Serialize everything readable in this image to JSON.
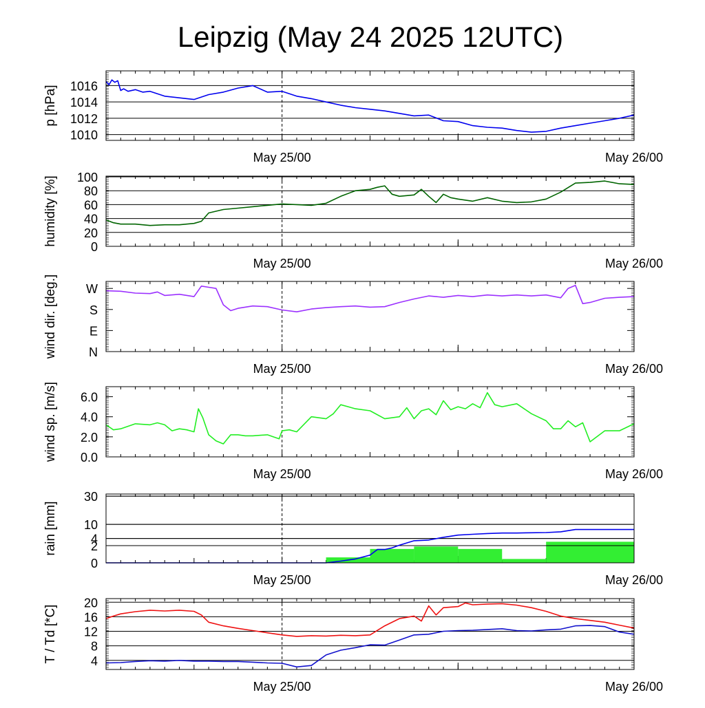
{
  "title": "Leipzig (May 24 2025 12UTC)",
  "colors": {
    "pressure": "#0000ee",
    "humidity": "#006400",
    "wind_dir": "#9b30ff",
    "wind_speed": "#22ee22",
    "rain_total": "#0000ee",
    "rain_bars": "#33ee33",
    "temperature": "#ee1111",
    "dewpoint": "#1111cc",
    "grid": "#000000"
  },
  "chart_data": [
    {
      "type": "line",
      "ylabel": "p [hPa]",
      "xlim": [
        0,
        36
      ],
      "ylim": [
        1009.3,
        1017.8
      ],
      "yticks": [
        1010,
        1012,
        1014,
        1016
      ],
      "ytick_labels": [
        "1010",
        "1012",
        "1014",
        "1016"
      ],
      "xtick_labels": [
        "May 25/00",
        "May 26/00"
      ],
      "xtick_hours": [
        12,
        36
      ],
      "grid": true,
      "series": [
        {
          "color_key": "pressure",
          "x": [
            0,
            0.2,
            0.4,
            0.6,
            0.8,
            1.0,
            1.2,
            1.5,
            2.0,
            2.5,
            3.0,
            4.0,
            5.0,
            6.0,
            7.0,
            8.0,
            9.0,
            10.0,
            11.0,
            12.0,
            13.0,
            14.0,
            15.0,
            16.0,
            17.0,
            18.0,
            19.0,
            20.0,
            21.0,
            22.0,
            23.0,
            24.0,
            25.0,
            26.0,
            27.0,
            28.0,
            29.0,
            30.0,
            31.0,
            32.0,
            33.0,
            34.0,
            35.0,
            36.0
          ],
          "y": [
            1016.5,
            1016.1,
            1016.7,
            1016.4,
            1016.6,
            1015.4,
            1015.6,
            1015.3,
            1015.5,
            1015.2,
            1015.3,
            1014.7,
            1014.5,
            1014.3,
            1014.9,
            1015.2,
            1015.7,
            1016.0,
            1015.2,
            1015.3,
            1014.7,
            1014.4,
            1014.0,
            1013.6,
            1013.3,
            1013.1,
            1012.9,
            1012.6,
            1012.3,
            1012.4,
            1011.7,
            1011.6,
            1011.1,
            1010.9,
            1010.8,
            1010.5,
            1010.3,
            1010.4,
            1010.8,
            1011.1,
            1011.4,
            1011.7,
            1012.0,
            1012.4
          ]
        }
      ]
    },
    {
      "type": "line",
      "ylabel": "humidity [%]",
      "xlim": [
        0,
        36
      ],
      "ylim": [
        0,
        101
      ],
      "yticks": [
        0,
        20,
        40,
        60,
        80,
        100
      ],
      "ytick_labels": [
        "0",
        "20",
        "40",
        "60",
        "80",
        "100"
      ],
      "xtick_labels": [
        "May 25/00",
        "May 26/00"
      ],
      "xtick_hours": [
        12,
        36
      ],
      "grid": true,
      "series": [
        {
          "color_key": "humidity",
          "x": [
            0,
            0.5,
            1.0,
            2.0,
            3.0,
            4.0,
            5.0,
            6.0,
            6.5,
            7.0,
            8.0,
            9.0,
            10.0,
            11.0,
            12.0,
            13.0,
            14.0,
            15.0,
            16.0,
            17.0,
            18.0,
            18.5,
            19.0,
            19.5,
            20.0,
            21.0,
            21.5,
            22.0,
            22.5,
            23.0,
            23.5,
            24.0,
            25.0,
            26.0,
            27.0,
            28.0,
            29.0,
            30.0,
            31.0,
            32.0,
            33.0,
            34.0,
            35.0,
            36.0
          ],
          "y": [
            38,
            34,
            32,
            32,
            30,
            31,
            31,
            33,
            36,
            48,
            53,
            55,
            57,
            59,
            61,
            60,
            59,
            62,
            72,
            80,
            82,
            85,
            87,
            75,
            72,
            74,
            82,
            72,
            63,
            75,
            70,
            68,
            65,
            70,
            65,
            63,
            64,
            68,
            78,
            91,
            92,
            94,
            90,
            89
          ]
        }
      ]
    },
    {
      "type": "line",
      "ylabel": "wind dir. [deg.]",
      "xlim": [
        0,
        36
      ],
      "ylim": [
        0,
        300
      ],
      "yticks": [
        0,
        90,
        180,
        270
      ],
      "ytick_labels": [
        "N",
        "E",
        "S",
        "W"
      ],
      "xtick_labels": [
        "May 25/00",
        "May 26/00"
      ],
      "xtick_hours": [
        12,
        36
      ],
      "grid": false,
      "series": [
        {
          "color_key": "wind_dir",
          "x": [
            0,
            1.0,
            2.0,
            3.0,
            3.5,
            4.0,
            5.0,
            6.0,
            6.5,
            7.0,
            7.5,
            8.0,
            8.5,
            9.0,
            10.0,
            11.0,
            12.0,
            13.0,
            14.0,
            15.0,
            16.0,
            17.0,
            18.0,
            19.0,
            20.0,
            21.0,
            22.0,
            23.0,
            24.0,
            25.0,
            26.0,
            27.0,
            28.0,
            29.0,
            30.0,
            31.0,
            31.5,
            32.0,
            32.5,
            33.0,
            34.0,
            35.0,
            36.0
          ],
          "y": [
            260,
            258,
            250,
            248,
            255,
            240,
            245,
            235,
            280,
            275,
            270,
            200,
            175,
            185,
            195,
            192,
            178,
            170,
            182,
            188,
            192,
            195,
            190,
            192,
            210,
            225,
            238,
            232,
            240,
            235,
            242,
            238,
            242,
            238,
            242,
            230,
            270,
            283,
            205,
            210,
            228,
            232,
            235
          ]
        }
      ]
    },
    {
      "type": "line",
      "ylabel": "wind sp. [m/s]",
      "xlim": [
        0,
        36
      ],
      "ylim": [
        0,
        7.0
      ],
      "yticks": [
        0,
        2,
        4,
        6
      ],
      "ytick_labels": [
        "0.0",
        "2.0",
        "4.0",
        "6.0"
      ],
      "xtick_labels": [
        "May 25/00",
        "May 26/00"
      ],
      "xtick_hours": [
        12,
        36
      ],
      "grid": false,
      "series": [
        {
          "color_key": "wind_speed",
          "x": [
            0,
            0.5,
            1.0,
            2.0,
            3.0,
            3.5,
            4.0,
            4.5,
            5.0,
            5.5,
            6.0,
            6.3,
            6.6,
            7.0,
            7.5,
            8.0,
            8.5,
            9.0,
            9.5,
            10.0,
            11.0,
            11.8,
            12.0,
            12.5,
            13.0,
            14.0,
            15.0,
            15.5,
            16.0,
            17.0,
            18.0,
            19.0,
            20.0,
            20.5,
            21.0,
            21.5,
            22.0,
            22.5,
            23.0,
            23.5,
            24.0,
            24.5,
            25.0,
            25.5,
            26.0,
            26.5,
            27.0,
            28.0,
            29.0,
            30.0,
            30.5,
            31.0,
            31.5,
            32.0,
            32.5,
            33.0,
            34.0,
            35.0,
            36.0
          ],
          "y": [
            3.2,
            2.7,
            2.8,
            3.3,
            3.2,
            3.4,
            3.2,
            2.6,
            2.8,
            2.7,
            2.5,
            4.8,
            3.9,
            2.2,
            1.6,
            1.3,
            2.2,
            2.2,
            2.1,
            2.1,
            2.2,
            1.8,
            2.6,
            2.7,
            2.5,
            4.0,
            3.8,
            4.3,
            5.2,
            4.8,
            4.6,
            3.8,
            4.0,
            4.9,
            3.8,
            4.6,
            4.8,
            4.2,
            5.6,
            4.7,
            5.0,
            4.8,
            5.3,
            4.9,
            6.4,
            5.2,
            5.0,
            5.3,
            4.3,
            3.6,
            2.8,
            2.8,
            3.6,
            3.0,
            3.4,
            1.5,
            2.6,
            2.6,
            3.3
          ]
        }
      ]
    },
    {
      "type": "bar",
      "ylabel": "rain [mm]",
      "xlim": [
        0,
        36
      ],
      "y_scale": "sqrt",
      "ylim": [
        0,
        32
      ],
      "yticks": [
        0,
        2,
        4,
        10,
        30
      ],
      "ytick_labels": [
        "0",
        "2",
        "4",
        "10",
        "30"
      ],
      "xtick_labels": [
        "May 25/00",
        "May 26/00"
      ],
      "xtick_hours": [
        12,
        36
      ],
      "grid": true,
      "bars": [
        {
          "x0": 0,
          "x1": 15,
          "value": 0
        },
        {
          "x0": 15,
          "x1": 18,
          "value": 0.2
        },
        {
          "x0": 18,
          "x1": 21,
          "value": 1.3
        },
        {
          "x0": 21,
          "x1": 24,
          "value": 1.8
        },
        {
          "x0": 24,
          "x1": 27,
          "value": 1.3
        },
        {
          "x0": 27,
          "x1": 30,
          "value": 0.1
        },
        {
          "x0": 30,
          "x1": 36,
          "value": 3.0
        }
      ],
      "series": [
        {
          "color_key": "rain_total",
          "x": [
            0,
            12,
            13,
            14,
            15,
            16,
            17,
            18,
            18.5,
            19,
            19.5,
            20,
            21,
            22,
            23,
            24,
            25,
            26,
            27,
            28,
            29,
            30,
            31,
            32,
            33,
            36
          ],
          "y": [
            0,
            0,
            0,
            0,
            0,
            0.02,
            0.1,
            0.4,
            1.2,
            1.2,
            1.5,
            2.1,
            3.3,
            3.5,
            4.4,
            5.2,
            5.5,
            5.8,
            6.0,
            6.0,
            6.1,
            6.2,
            6.5,
            7.5,
            7.5,
            7.5
          ]
        }
      ]
    },
    {
      "type": "line",
      "ylabel": "T / Td [*C]",
      "xlim": [
        0,
        36
      ],
      "ylim": [
        1.5,
        21
      ],
      "yticks": [
        4,
        8,
        12,
        16,
        20
      ],
      "ytick_labels": [
        "4",
        "8",
        "12",
        "16",
        "20"
      ],
      "xtick_labels": [
        "May 25/00",
        "May 26/00"
      ],
      "xtick_hours": [
        12,
        36
      ],
      "grid": true,
      "series": [
        {
          "color_key": "temperature",
          "x": [
            0,
            0.5,
            1.0,
            2.0,
            3.0,
            4.0,
            5.0,
            6.0,
            6.5,
            7.0,
            8.0,
            9.0,
            10.0,
            11.0,
            12.0,
            13.0,
            14.0,
            15.0,
            16.0,
            17.0,
            18.0,
            19.0,
            20.0,
            21.0,
            21.5,
            22.0,
            22.5,
            23.0,
            24.0,
            24.5,
            25.0,
            26.0,
            27.0,
            28.0,
            29.0,
            30.0,
            31.0,
            32.0,
            33.0,
            34.0,
            35.0,
            36.0
          ],
          "y": [
            15.5,
            16.2,
            16.8,
            17.4,
            17.8,
            17.6,
            17.8,
            17.5,
            16.5,
            14.5,
            13.5,
            12.8,
            12.2,
            11.6,
            11.0,
            10.6,
            10.8,
            10.7,
            10.9,
            10.8,
            11.0,
            13.5,
            15.5,
            16.2,
            14.8,
            19.0,
            16.5,
            18.5,
            18.8,
            19.8,
            19.3,
            19.5,
            19.6,
            19.2,
            18.5,
            17.5,
            16.2,
            15.5,
            15.0,
            14.5,
            13.7,
            12.9
          ]
        },
        {
          "color_key": "dewpoint",
          "x": [
            0,
            1.0,
            2.0,
            3.0,
            4.0,
            5.0,
            6.0,
            7.0,
            8.0,
            9.0,
            10.0,
            11.0,
            12.0,
            13.0,
            14.0,
            15.0,
            16.0,
            17.0,
            18.0,
            19.0,
            20.0,
            21.0,
            22.0,
            23.0,
            24.0,
            25.0,
            26.0,
            27.0,
            28.0,
            29.0,
            30.0,
            31.0,
            32.0,
            33.0,
            34.0,
            35.0,
            36.0
          ],
          "y": [
            3.3,
            3.4,
            3.7,
            3.9,
            3.8,
            4.0,
            3.8,
            3.8,
            3.7,
            3.7,
            3.5,
            3.3,
            3.2,
            2.2,
            2.6,
            5.5,
            6.8,
            7.5,
            8.3,
            8.2,
            9.6,
            11.0,
            11.2,
            12.0,
            12.2,
            12.3,
            12.5,
            12.7,
            12.2,
            12.1,
            12.4,
            12.6,
            13.5,
            13.6,
            13.3,
            11.8,
            11.2
          ]
        }
      ]
    }
  ]
}
